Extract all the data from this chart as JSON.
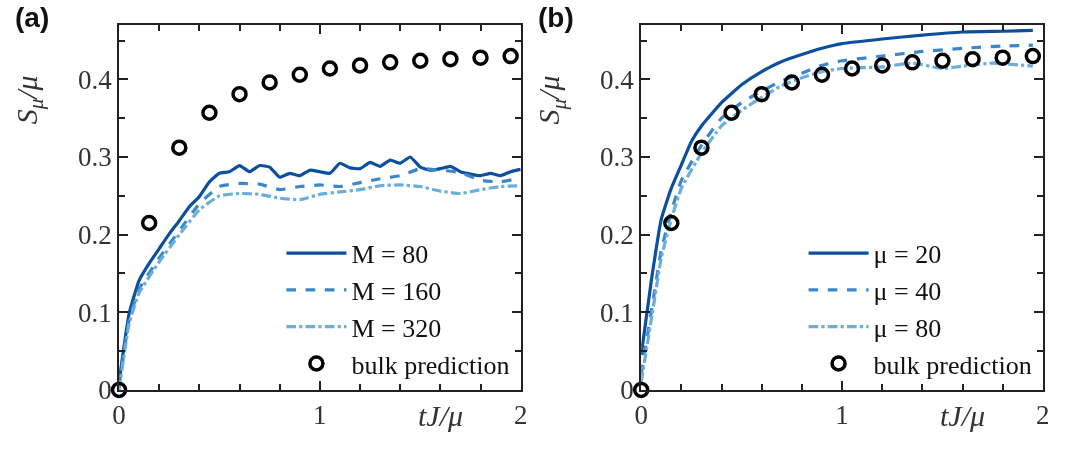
{
  "chart_data": [
    {
      "type": "line",
      "title": "(a)",
      "xlabel": "tJ/μ",
      "ylabel": "S$_{μ}$/μ",
      "xlim": [
        0,
        2
      ],
      "ylim": [
        0,
        0.47
      ],
      "xticks": [
        0,
        1,
        2
      ],
      "yticks": [
        0,
        0.1,
        0.2,
        0.3,
        0.4
      ],
      "legend": "bottom right",
      "series": [
        {
          "name": "M = 80",
          "color": "#0b4f9e",
          "line_style": "solid",
          "x": [
            0,
            0.05,
            0.1,
            0.15,
            0.2,
            0.25,
            0.3,
            0.35,
            0.4,
            0.45,
            0.5,
            0.55,
            0.6,
            0.65,
            0.7,
            0.75,
            0.8,
            0.85,
            0.9,
            0.95,
            1.0,
            1.05,
            1.1,
            1.15,
            1.2,
            1.25,
            1.3,
            1.35,
            1.4,
            1.45,
            1.5,
            1.55,
            1.6,
            1.65,
            1.7,
            1.75,
            1.8,
            1.85,
            1.9,
            1.95,
            2.0
          ],
          "values": [
            0.01,
            0.098,
            0.141,
            0.163,
            0.182,
            0.201,
            0.218,
            0.236,
            0.249,
            0.268,
            0.279,
            0.281,
            0.289,
            0.281,
            0.289,
            0.287,
            0.274,
            0.279,
            0.276,
            0.283,
            0.281,
            0.279,
            0.292,
            0.286,
            0.285,
            0.293,
            0.288,
            0.296,
            0.292,
            0.3,
            0.287,
            0.283,
            0.285,
            0.288,
            0.281,
            0.278,
            0.276,
            0.279,
            0.276,
            0.281,
            0.284
          ]
        },
        {
          "name": "M = 160",
          "color": "#3b87c9",
          "line_style": "dashed",
          "x": [
            0,
            0.05,
            0.1,
            0.2,
            0.3,
            0.4,
            0.5,
            0.6,
            0.7,
            0.8,
            0.9,
            1.0,
            1.1,
            1.2,
            1.3,
            1.4,
            1.5,
            1.6,
            1.7,
            1.8,
            1.9,
            2.0
          ],
          "values": [
            0.005,
            0.09,
            0.13,
            0.17,
            0.205,
            0.24,
            0.262,
            0.266,
            0.265,
            0.258,
            0.262,
            0.264,
            0.262,
            0.267,
            0.272,
            0.276,
            0.285,
            0.283,
            0.28,
            0.27,
            0.268,
            0.273
          ]
        },
        {
          "name": "M = 320",
          "color": "#6aaedb",
          "line_style": "dashdot",
          "x": [
            0,
            0.05,
            0.1,
            0.2,
            0.3,
            0.4,
            0.5,
            0.6,
            0.7,
            0.8,
            0.9,
            1.0,
            1.1,
            1.2,
            1.3,
            1.4,
            1.5,
            1.6,
            1.7,
            1.8,
            1.9,
            2.0
          ],
          "values": [
            0.0,
            0.085,
            0.125,
            0.165,
            0.2,
            0.232,
            0.25,
            0.253,
            0.252,
            0.247,
            0.245,
            0.252,
            0.255,
            0.258,
            0.263,
            0.264,
            0.262,
            0.256,
            0.253,
            0.258,
            0.262,
            0.263
          ]
        },
        {
          "name": "bulk prediction",
          "type": "scatter",
          "marker": "circle",
          "color": "#000000",
          "x": [
            0,
            0.15,
            0.3,
            0.45,
            0.6,
            0.75,
            0.9,
            1.05,
            1.2,
            1.35,
            1.5,
            1.65,
            1.8,
            1.95
          ],
          "values": [
            0,
            0.215,
            0.312,
            0.357,
            0.381,
            0.396,
            0.406,
            0.414,
            0.418,
            0.422,
            0.424,
            0.426,
            0.428,
            0.43
          ]
        }
      ]
    },
    {
      "type": "line",
      "title": "(b)",
      "xlabel": "tJ/μ",
      "ylabel": "S$_{μ}$/μ",
      "xlim": [
        0,
        2
      ],
      "ylim": [
        0,
        0.47
      ],
      "xticks": [
        0,
        1,
        2
      ],
      "yticks": [
        0,
        0.1,
        0.2,
        0.3,
        0.4
      ],
      "legend": "bottom right",
      "series": [
        {
          "name": "μ = 20",
          "color": "#0b4f9e",
          "line_style": "solid",
          "x": [
            0,
            0.05,
            0.1,
            0.15,
            0.2,
            0.25,
            0.3,
            0.4,
            0.5,
            0.6,
            0.7,
            0.8,
            0.9,
            1.0,
            1.2,
            1.4,
            1.6,
            1.8,
            1.95
          ],
          "values": [
            0.045,
            0.14,
            0.22,
            0.26,
            0.29,
            0.32,
            0.34,
            0.37,
            0.393,
            0.41,
            0.423,
            0.432,
            0.44,
            0.446,
            0.452,
            0.457,
            0.461,
            0.462,
            0.463
          ]
        },
        {
          "name": "μ = 40",
          "color": "#3b87c9",
          "line_style": "dashed",
          "x": [
            0,
            0.05,
            0.1,
            0.15,
            0.2,
            0.3,
            0.4,
            0.5,
            0.6,
            0.7,
            0.8,
            0.9,
            1.0,
            1.2,
            1.4,
            1.6,
            1.8,
            1.95
          ],
          "values": [
            0.02,
            0.1,
            0.18,
            0.23,
            0.27,
            0.315,
            0.35,
            0.37,
            0.385,
            0.398,
            0.408,
            0.418,
            0.424,
            0.43,
            0.436,
            0.44,
            0.443,
            0.444
          ]
        },
        {
          "name": "μ = 80",
          "color": "#6aaedb",
          "line_style": "dashdot",
          "x": [
            0,
            0.05,
            0.1,
            0.15,
            0.2,
            0.3,
            0.4,
            0.5,
            0.6,
            0.7,
            0.8,
            0.9,
            1.0,
            1.2,
            1.35,
            1.5,
            1.6,
            1.75,
            1.95
          ],
          "values": [
            0.01,
            0.09,
            0.17,
            0.22,
            0.26,
            0.305,
            0.34,
            0.36,
            0.377,
            0.392,
            0.402,
            0.41,
            0.414,
            0.416,
            0.421,
            0.414,
            0.417,
            0.421,
            0.417
          ]
        },
        {
          "name": "bulk prediction",
          "type": "scatter",
          "marker": "circle",
          "color": "#000000",
          "x": [
            0,
            0.15,
            0.3,
            0.45,
            0.6,
            0.75,
            0.9,
            1.05,
            1.2,
            1.35,
            1.5,
            1.65,
            1.8,
            1.95
          ],
          "values": [
            0,
            0.215,
            0.312,
            0.357,
            0.381,
            0.396,
            0.406,
            0.414,
            0.418,
            0.422,
            0.424,
            0.426,
            0.428,
            0.43
          ]
        }
      ]
    }
  ]
}
